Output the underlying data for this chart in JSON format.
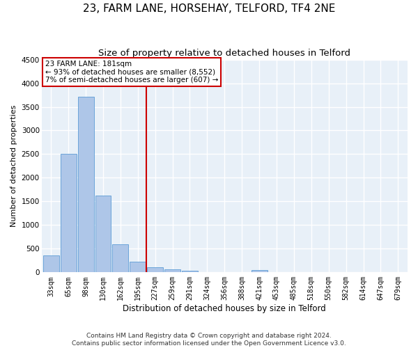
{
  "title1": "23, FARM LANE, HORSEHAY, TELFORD, TF4 2NE",
  "title2": "Size of property relative to detached houses in Telford",
  "xlabel": "Distribution of detached houses by size in Telford",
  "ylabel": "Number of detached properties",
  "categories": [
    "33sqm",
    "65sqm",
    "98sqm",
    "130sqm",
    "162sqm",
    "195sqm",
    "227sqm",
    "259sqm",
    "291sqm",
    "324sqm",
    "356sqm",
    "388sqm",
    "421sqm",
    "453sqm",
    "485sqm",
    "518sqm",
    "550sqm",
    "582sqm",
    "614sqm",
    "647sqm",
    "679sqm"
  ],
  "values": [
    360,
    2500,
    3720,
    1630,
    595,
    220,
    105,
    60,
    40,
    0,
    0,
    0,
    55,
    0,
    0,
    0,
    0,
    0,
    0,
    0,
    0
  ],
  "bar_color": "#aec6e8",
  "bar_edge_color": "#5b9bd5",
  "vline_x": 5.5,
  "vline_color": "#cc0000",
  "annotation_text": "23 FARM LANE: 181sqm\n← 93% of detached houses are smaller (8,552)\n7% of semi-detached houses are larger (607) →",
  "annotation_box_color": "#ffffff",
  "annotation_box_edge": "#cc0000",
  "ylim": [
    0,
    4500
  ],
  "background_color": "#e8f0f8",
  "grid_color": "#ffffff",
  "footer": "Contains HM Land Registry data © Crown copyright and database right 2024.\nContains public sector information licensed under the Open Government Licence v3.0.",
  "title1_fontsize": 11,
  "title2_fontsize": 9.5,
  "ylabel_fontsize": 8,
  "xlabel_fontsize": 8.5,
  "tick_fontsize": 7,
  "footer_fontsize": 6.5,
  "ann_fontsize": 7.5
}
